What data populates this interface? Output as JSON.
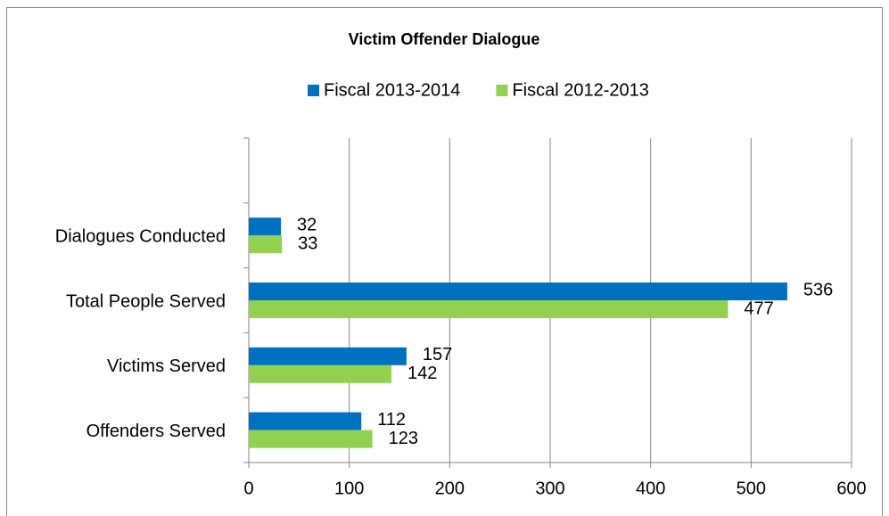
{
  "chart_data": {
    "type": "hbar",
    "title": "Victim Offender Dialogue",
    "categories": [
      null,
      "Dialogues Conducted",
      "Total People Served",
      "Victims Served",
      "Offenders Served"
    ],
    "series": [
      {
        "name": "Fiscal 2013-2014",
        "color": "#0070c0",
        "values": [
          null,
          32,
          536,
          157,
          112
        ]
      },
      {
        "name": "Fiscal 2012-2013",
        "color": "#92d050",
        "values": [
          null,
          33,
          477,
          142,
          123
        ]
      }
    ],
    "xlim": [
      0,
      600
    ],
    "xticks": [
      0,
      100,
      200,
      300,
      400,
      500,
      600
    ],
    "grid": true,
    "legend": "top"
  }
}
